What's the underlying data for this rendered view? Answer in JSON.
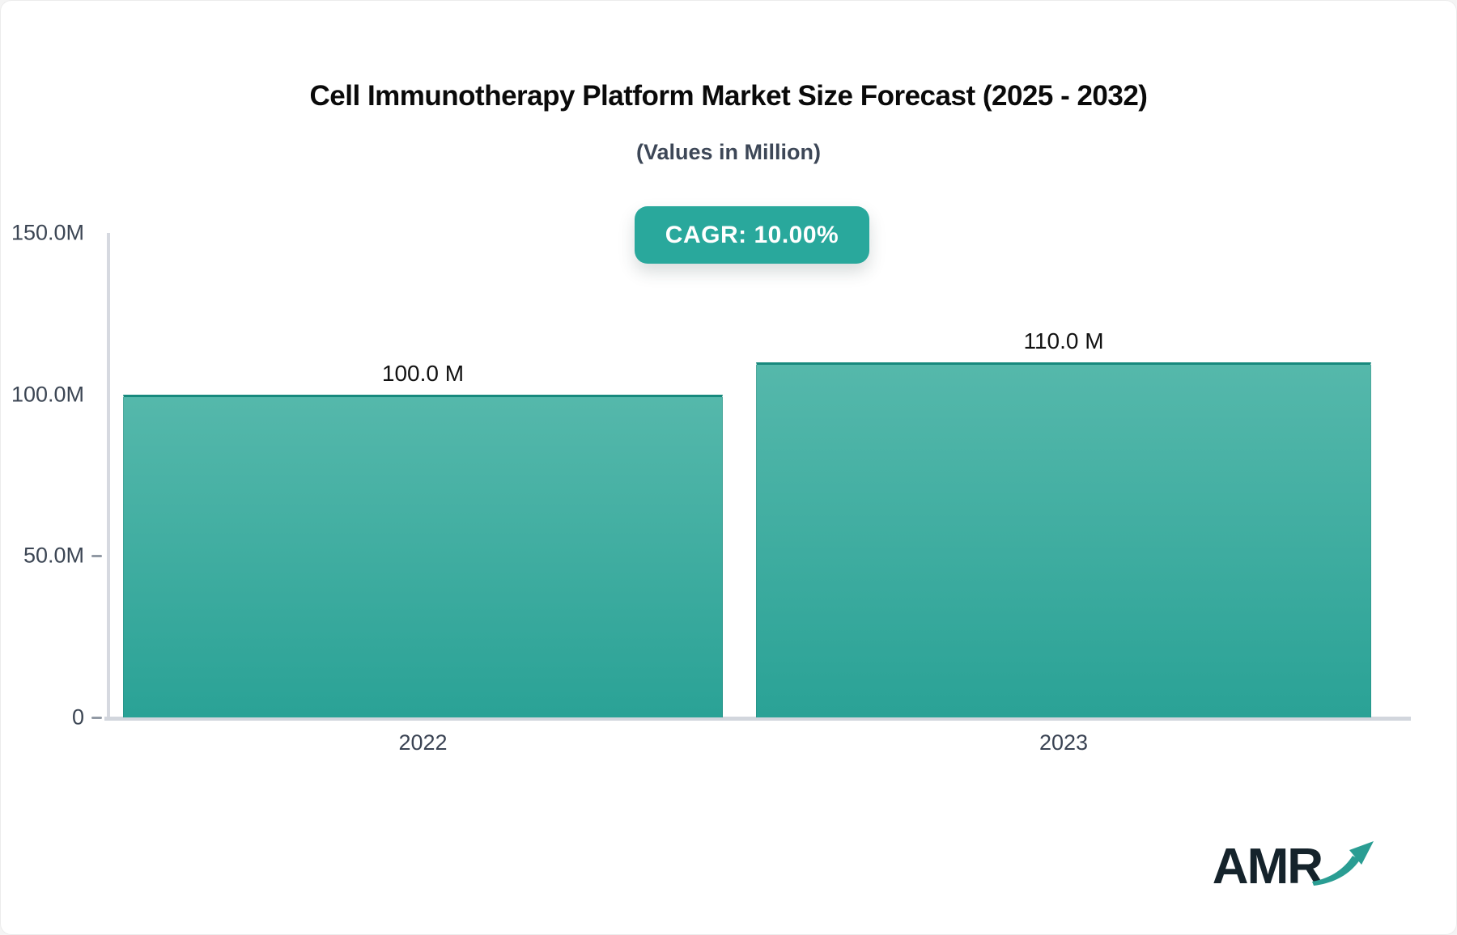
{
  "header": {
    "title": "Cell Immunotherapy Platform Market Size Forecast (2025 - 2032)",
    "subtitle": "(Values in Million)",
    "cagr_label": "CAGR: 10.00%"
  },
  "chart_data": {
    "type": "bar",
    "categories": [
      "2022",
      "2023"
    ],
    "values": [
      100,
      110
    ],
    "value_labels": [
      "100.0 M",
      "110.0 M"
    ],
    "title": "Cell Immunotherapy Platform Market Size Forecast (2025 - 2032)",
    "subtitle": "(Values in Million)",
    "xlabel": "",
    "ylabel": "",
    "ylim": [
      0,
      150
    ],
    "yticks": [
      "150.0M",
      "100.0M",
      "50.0M",
      "0"
    ],
    "ytick_values": [
      150,
      100,
      50,
      0
    ],
    "unit": "Million",
    "cagr": "10.00%",
    "grid": false,
    "legend": false
  },
  "colors": {
    "accent_teal": "#29a89c",
    "bar_gradient_top": "#55b8ab",
    "bar_gradient_bottom": "#2aa296",
    "bar_top_border": "#17897d",
    "axis_gray": "#d6d9e0",
    "text_slate": "#3c4654",
    "logo_navy": "#15232b"
  },
  "logo": {
    "text": "AMR"
  }
}
